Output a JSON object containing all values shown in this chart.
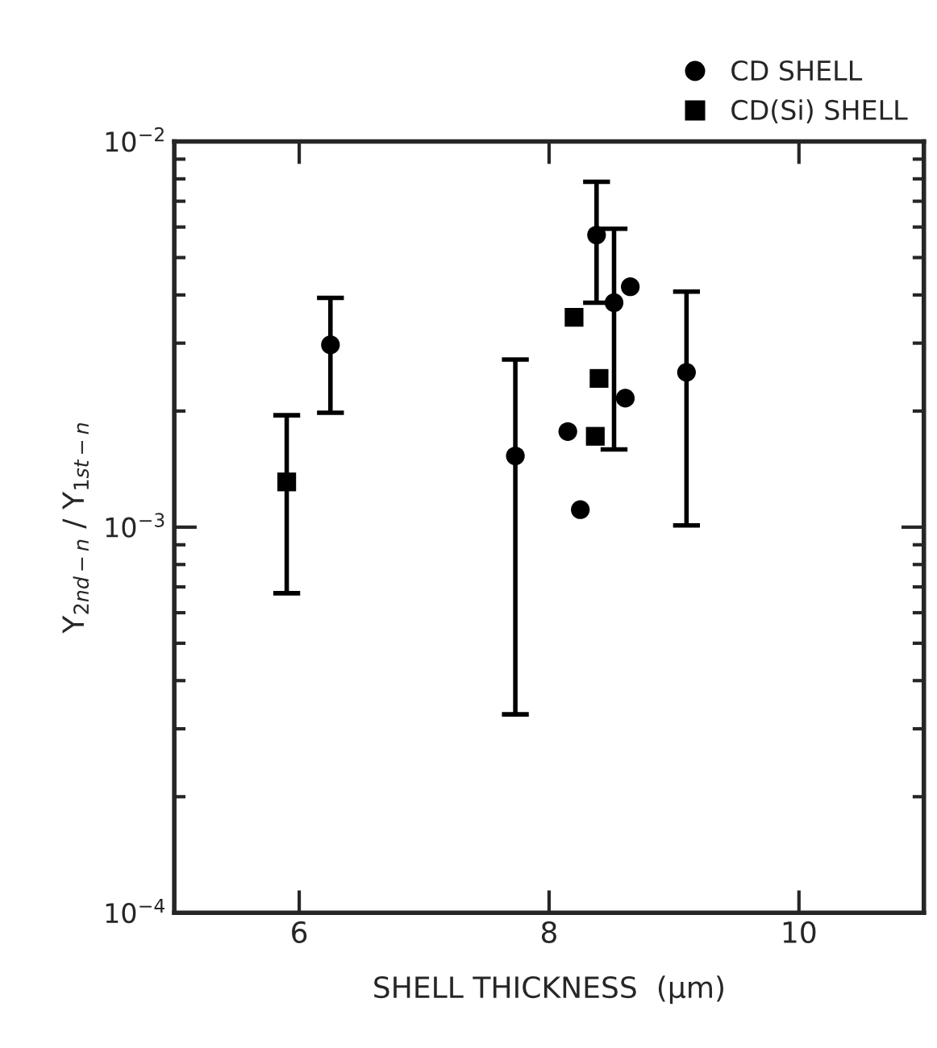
{
  "chart_data": {
    "type": "scatter",
    "xlabel": "SHELL THICKNESS  (μm)",
    "ylabel": "Y$_{2nd−n}$ / Y$_{1st−n}$",
    "xlim": [
      5,
      11
    ],
    "xticks": [
      6,
      8,
      10
    ],
    "ylim": [
      0.0001,
      0.01
    ],
    "yticks": [
      {
        "value": 0.0001,
        "label": "10$^{−4}$"
      },
      {
        "value": 0.001,
        "label": "10$^{−3}$"
      },
      {
        "value": 0.01,
        "label": "10$^{−2}$"
      }
    ],
    "log": "y",
    "grid": false,
    "legend": "top right",
    "series": [
      {
        "name": "CD SHELL",
        "color": "#000000",
        "marker": "circle",
        "x": [
          6.25,
          7.73,
          8.15,
          8.25,
          8.38,
          8.52,
          8.65,
          8.61,
          9.1
        ],
        "values": [
          0.00297,
          0.00153,
          0.00177,
          0.00111,
          0.00572,
          0.00382,
          0.0042,
          0.00216,
          0.00252
        ],
        "errors": [
          [
            0.00198,
            0.00393
          ],
          [
            0.000327,
            0.00272
          ],
          null,
          null,
          [
            0.00382,
            0.00786
          ],
          [
            0.00159,
            0.00594
          ],
          null,
          null,
          [
            0.00101,
            0.00408
          ]
        ]
      },
      {
        "name": "CD(Si) SHELL",
        "color": "#000000",
        "marker": "square",
        "x": [
          5.9,
          8.2,
          8.4,
          8.37
        ],
        "values": [
          0.00131,
          0.0035,
          0.00243,
          0.00172
        ],
        "errors": [
          [
            0.000674,
            0.00195
          ],
          null,
          null,
          null
        ]
      }
    ]
  }
}
